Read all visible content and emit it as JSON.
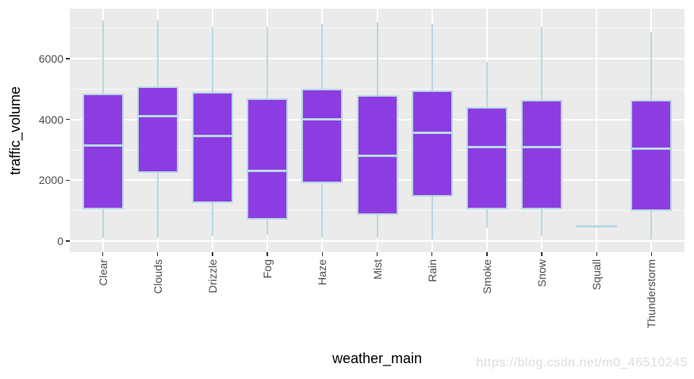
{
  "watermark": {
    "text": "https://blog.csdn.net/m0_46510245",
    "color": "#DCDCDC"
  },
  "chart_data": {
    "type": "boxplot",
    "title": "",
    "xlabel": "weather_main",
    "ylabel": "traffic_volume",
    "categories": [
      "Clear",
      "Clouds",
      "Drizzle",
      "Fog",
      "Haze",
      "Mist",
      "Rain",
      "Smoke",
      "Snow",
      "Squall",
      "Thunderstorm"
    ],
    "boxes": [
      {
        "category": "Clear",
        "min": 100,
        "q1": 1050,
        "median": 3150,
        "q3": 4850,
        "max": 7250
      },
      {
        "category": "Clouds",
        "min": 100,
        "q1": 2250,
        "median": 4100,
        "q3": 5100,
        "max": 7250
      },
      {
        "category": "Drizzle",
        "min": 150,
        "q1": 1250,
        "median": 3450,
        "q3": 4900,
        "max": 7050
      },
      {
        "category": "Fog",
        "min": 200,
        "q1": 700,
        "median": 2300,
        "q3": 4700,
        "max": 7050
      },
      {
        "category": "Haze",
        "min": 100,
        "q1": 1900,
        "median": 4000,
        "q3": 5000,
        "max": 7150
      },
      {
        "category": "Mist",
        "min": 100,
        "q1": 850,
        "median": 2800,
        "q3": 4800,
        "max": 7200
      },
      {
        "category": "Rain",
        "min": 50,
        "q1": 1450,
        "median": 3550,
        "q3": 4950,
        "max": 7150
      },
      {
        "category": "Smoke",
        "min": 450,
        "q1": 1050,
        "median": 3100,
        "q3": 4400,
        "max": 5900
      },
      {
        "category": "Snow",
        "min": 150,
        "q1": 1050,
        "median": 3100,
        "q3": 4650,
        "max": 7050
      },
      {
        "category": "Squall",
        "min": 480,
        "q1": 480,
        "median": 480,
        "q3": 480,
        "max": 480
      },
      {
        "category": "Thunderstorm",
        "min": 50,
        "q1": 1000,
        "median": 3050,
        "q3": 4650,
        "max": 6850
      }
    ],
    "ylim": [
      -364,
      7644
    ],
    "y_ticks": {
      "values": [
        0,
        2000,
        4000,
        6000
      ],
      "labels": [
        "0",
        "2000",
        "4000",
        "6000"
      ]
    },
    "y_minor_gridlines": [
      1000,
      3000,
      5000,
      7000
    ],
    "grid": "white major+minor horizontal, white major vertical at categories",
    "legend_position": "none",
    "style": {
      "box_fill": "#8C3DE2",
      "box_border": "#B8D7E4",
      "panel_bg": "#EBEBEB",
      "grid_major": "#FFFFFF",
      "tick_color": "#333333",
      "tick_label_color": "#4D4D4D",
      "axis_title_color": "#000000"
    }
  }
}
